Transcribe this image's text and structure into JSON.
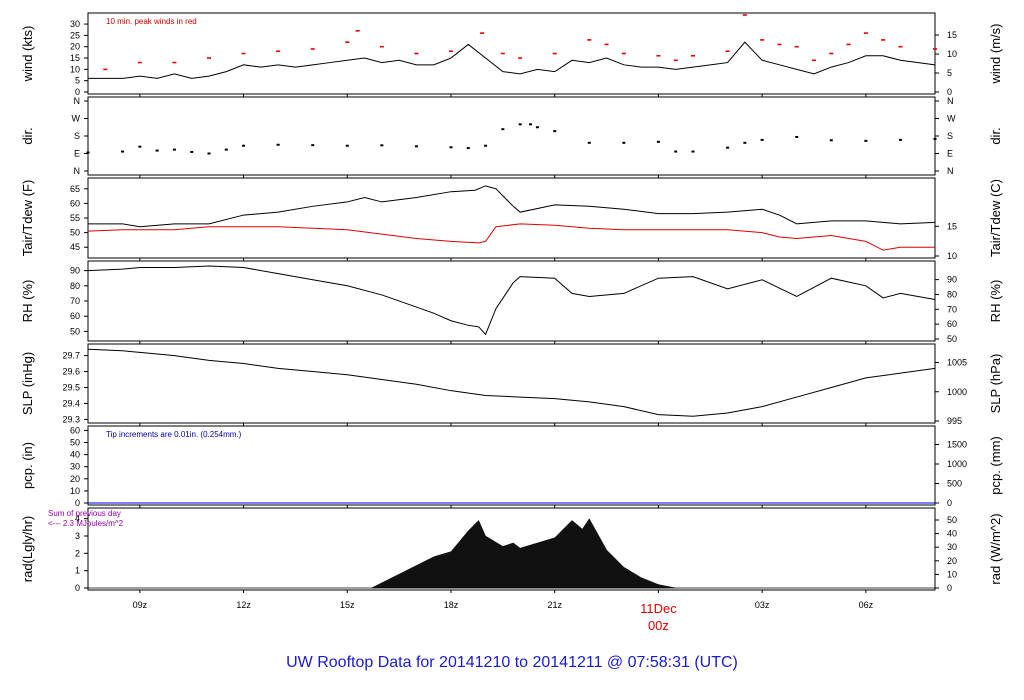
{
  "title": "UW Rooftop Data for 20141210  to  20141211 @ 07:58:31  (UTC)",
  "x_ticks": [
    "09z",
    "12z",
    "15z",
    "18z",
    "21z",
    "",
    "03z",
    "06z"
  ],
  "date_label": {
    "day": "11Dec",
    "hour": "00z",
    "color": "#e00000"
  },
  "chart_data": [
    {
      "id": "wind",
      "type": "line",
      "ylabel_left": "wind (kts)",
      "ylabel_right": "wind (m/s)",
      "ylim": [
        0,
        34
      ],
      "yticks_left": [
        0,
        5,
        10,
        15,
        20,
        25,
        30
      ],
      "yticks_right": [
        "0",
        "5",
        "10",
        "15"
      ],
      "note": "10 min. peak winds in red",
      "note_color": "#cc0000",
      "series": [
        {
          "color": "#000000",
          "x": [
            7.5,
            8.5,
            9.0,
            9.5,
            10.0,
            10.5,
            11.0,
            11.5,
            12.0,
            12.5,
            13.0,
            13.5,
            14.0,
            14.5,
            15.0,
            15.5,
            16.0,
            16.5,
            17.0,
            17.5,
            18.0,
            18.5,
            19.0,
            19.5,
            20.0,
            20.5,
            21.0,
            21.5,
            22.0,
            22.5,
            23.0,
            23.5,
            24.0,
            24.5,
            25.0,
            25.5,
            26.0,
            26.5,
            27.0,
            27.5,
            28.0,
            28.5,
            29.0,
            29.5,
            30.0,
            30.5,
            31.0,
            32.0
          ],
          "values": [
            6,
            6,
            7,
            6,
            8,
            6,
            7,
            9,
            12,
            11,
            12,
            11,
            12,
            13,
            14,
            15,
            13,
            14,
            12,
            12,
            15,
            21,
            15,
            9,
            8,
            10,
            9,
            14,
            13,
            15,
            12,
            11,
            11,
            10,
            11,
            12,
            13,
            22,
            14,
            12,
            10,
            8,
            11,
            13,
            16,
            16,
            14,
            12
          ]
        },
        {
          "color": "#e00000",
          "type": "scatter",
          "x": [
            8.0,
            9.0,
            10.0,
            11.0,
            12.0,
            13.0,
            14.0,
            15.0,
            15.3,
            16.0,
            17.0,
            18.0,
            18.9,
            19.5,
            20.0,
            21.0,
            22.0,
            22.5,
            23.0,
            24.0,
            24.5,
            25.0,
            26.0,
            26.5,
            27.0,
            27.5,
            28.0,
            28.5,
            29.0,
            29.5,
            30.0,
            30.5,
            31.0,
            32.0
          ],
          "values": [
            10,
            13,
            13,
            15,
            17,
            18,
            19,
            22,
            27,
            20,
            17,
            18,
            26,
            17,
            15,
            17,
            23,
            21,
            17,
            16,
            14,
            16,
            18,
            34,
            23,
            21,
            20,
            14,
            17,
            21,
            26,
            23,
            20,
            19
          ]
        }
      ]
    },
    {
      "id": "dir",
      "type": "scatter",
      "ylabel_left": "dir.",
      "ylabel_right": "dir.",
      "yticks_left": [
        "N",
        "E",
        "S",
        "W",
        "N"
      ],
      "yticks_right": [
        "N",
        "E",
        "S",
        "W",
        "N"
      ],
      "series": [
        {
          "color": "#000000",
          "x": [
            7.5,
            8.5,
            9.0,
            9.5,
            10.0,
            10.5,
            11.0,
            11.5,
            12.0,
            13.0,
            14.0,
            15.0,
            16.0,
            17.0,
            18.0,
            18.5,
            19.0,
            19.5,
            20.0,
            20.3,
            20.5,
            21.0,
            22.0,
            23.0,
            24.0,
            24.5,
            25.0,
            26.0,
            26.5,
            27.0,
            28.0,
            29.0,
            30.0,
            31.0,
            32.0
          ],
          "values": [
            95,
            100,
            125,
            105,
            110,
            98,
            90,
            110,
            130,
            135,
            133,
            130,
            132,
            127,
            122,
            118,
            130,
            215,
            240,
            240,
            225,
            205,
            145,
            145,
            150,
            100,
            100,
            120,
            145,
            160,
            175,
            158,
            155,
            160,
            165
          ]
        }
      ]
    },
    {
      "id": "temp",
      "type": "line",
      "ylabel_left": "Tair/Tdew (F)",
      "ylabel_right": "Tair/Tdew (C)",
      "ylim": [
        42,
        68
      ],
      "yticks_left": [
        45,
        50,
        55,
        60,
        65
      ],
      "yticks_right": [
        "10",
        "15"
      ],
      "series": [
        {
          "color": "#000000",
          "x": [
            7.5,
            8.5,
            9.0,
            10.0,
            11.0,
            12.0,
            13.0,
            14.0,
            15.0,
            15.5,
            16.0,
            17.0,
            18.0,
            18.7,
            19.0,
            19.3,
            19.8,
            20.0,
            21.0,
            22.0,
            23.0,
            24.0,
            25.0,
            26.0,
            27.0,
            27.5,
            28.0,
            29.0,
            30.0,
            31.0,
            32.0
          ],
          "values": [
            53,
            53,
            52,
            53,
            53,
            56,
            57,
            59,
            60.5,
            62,
            60.5,
            62,
            64,
            64.5,
            66,
            65,
            59,
            57,
            59.5,
            59,
            58,
            56.5,
            56.5,
            57,
            58,
            56,
            53,
            54,
            54,
            53,
            53.5
          ]
        },
        {
          "color": "#e00000",
          "x": [
            7.5,
            8.5,
            9.0,
            10.0,
            11.0,
            12.0,
            13.0,
            14.0,
            15.0,
            16.0,
            17.0,
            18.0,
            18.8,
            19.0,
            19.3,
            20.0,
            21.0,
            22.0,
            23.0,
            24.0,
            25.0,
            26.0,
            27.0,
            27.5,
            28.0,
            29.0,
            30.0,
            30.5,
            31.0,
            32.0
          ],
          "values": [
            50.5,
            51,
            51,
            51,
            52,
            52,
            52,
            51.5,
            51,
            49.5,
            48,
            47,
            46.5,
            47,
            52,
            53,
            52.5,
            51.5,
            51,
            51,
            51,
            51,
            50,
            48.5,
            48,
            49,
            47,
            44,
            45,
            45
          ]
        }
      ]
    },
    {
      "id": "rh",
      "type": "line",
      "ylabel_left": "RH (%)",
      "ylabel_right": "RH (%)",
      "ylim": [
        45,
        95
      ],
      "yticks_left": [
        50,
        60,
        70,
        80,
        90
      ],
      "yticks_right": [
        "50",
        "60",
        "70",
        "80",
        "90"
      ],
      "series": [
        {
          "color": "#000000",
          "x": [
            7.5,
            8.5,
            9.0,
            10.0,
            11.0,
            12.0,
            13.0,
            14.0,
            15.0,
            16.0,
            17.0,
            17.5,
            18.0,
            18.5,
            18.8,
            19.0,
            19.3,
            19.8,
            20.0,
            21.0,
            21.5,
            22.0,
            23.0,
            24.0,
            25.0,
            26.0,
            27.0,
            28.0,
            29.0,
            30.0,
            30.5,
            31.0,
            32.0
          ],
          "values": [
            90,
            91,
            92,
            92,
            93,
            92,
            88,
            84,
            80,
            74,
            66,
            62,
            57,
            54,
            53,
            48,
            65,
            82,
            86,
            85,
            75,
            73,
            75,
            85,
            86,
            78,
            84,
            73,
            85,
            80,
            72,
            75,
            71
          ]
        }
      ]
    },
    {
      "id": "slp",
      "type": "line",
      "ylabel_left": "SLP (inHg)",
      "ylabel_right": "SLP (hPa)",
      "ylim": [
        29.29,
        29.76
      ],
      "yticks_left": [
        "29.3",
        "29.4",
        "29.5",
        "29.6",
        "29.7"
      ],
      "yticks_right": [
        "995",
        "1000",
        "1005"
      ],
      "series": [
        {
          "color": "#000000",
          "x": [
            7.5,
            8.5,
            9.0,
            10.0,
            11.0,
            12.0,
            13.0,
            14.0,
            15.0,
            16.0,
            17.0,
            18.0,
            19.0,
            20.0,
            21.0,
            22.0,
            23.0,
            24.0,
            25.0,
            26.0,
            27.0,
            28.0,
            29.0,
            30.0,
            31.0,
            32.0
          ],
          "values": [
            29.74,
            29.73,
            29.72,
            29.7,
            29.67,
            29.65,
            29.62,
            29.6,
            29.58,
            29.55,
            29.52,
            29.48,
            29.45,
            29.44,
            29.43,
            29.41,
            29.38,
            29.33,
            29.32,
            29.34,
            29.38,
            29.44,
            29.5,
            29.56,
            29.59,
            29.62
          ]
        }
      ]
    },
    {
      "id": "pcp",
      "type": "line",
      "ylabel_left": "pcp. (in)",
      "ylabel_right": "pcp. (mm)",
      "ylim": [
        0,
        62
      ],
      "yticks_left": [
        0,
        10,
        20,
        30,
        40,
        50,
        60
      ],
      "yticks_right": [
        "0",
        "500",
        "1000",
        "1500"
      ],
      "note": "Tip increments are 0.01in. (0.254mm.)",
      "note_color": "#0000aa",
      "series": [
        {
          "color": "#0000ff",
          "x": [
            7.5,
            32.0
          ],
          "values": [
            0,
            0
          ]
        }
      ]
    },
    {
      "id": "rad",
      "type": "area",
      "ylabel_left": "rad(Lgly/hr)",
      "ylabel_right": "rad (W/m^2)",
      "ylim": [
        0,
        4.5
      ],
      "yticks_left": [
        0,
        1,
        2,
        3,
        4
      ],
      "yticks_right": [
        "0",
        "10",
        "20",
        "30",
        "40",
        "50"
      ],
      "note_lines": [
        "Sum of previous day",
        "<--- 2.3 MJoules/m^2"
      ],
      "note_color": "#9900aa",
      "series": [
        {
          "color": "#111111",
          "x": [
            15.7,
            16.0,
            16.5,
            17.0,
            17.5,
            18.0,
            18.5,
            18.8,
            19.0,
            19.5,
            19.8,
            20.0,
            20.5,
            21.0,
            21.5,
            21.8,
            22.0,
            22.5,
            23.0,
            23.5,
            24.0,
            24.5
          ],
          "values": [
            0,
            0.3,
            0.8,
            1.3,
            1.8,
            2.1,
            3.3,
            3.9,
            3.0,
            2.4,
            2.6,
            2.3,
            2.6,
            2.9,
            3.9,
            3.4,
            4.0,
            2.2,
            1.2,
            0.6,
            0.2,
            0
          ]
        }
      ]
    }
  ]
}
